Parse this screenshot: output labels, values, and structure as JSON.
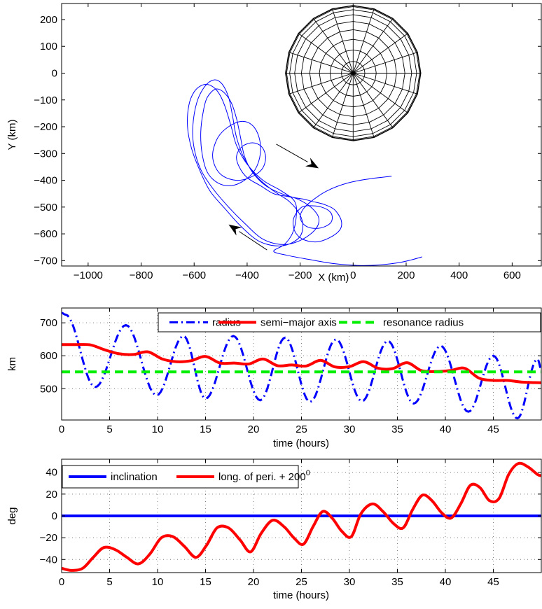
{
  "chart_data": [
    {
      "type": "line",
      "xlabel": "X (km)",
      "ylabel": "Y (km)",
      "xlim": [
        -1100,
        710
      ],
      "ylim": [
        -720,
        260
      ],
      "xticks": [
        -1000,
        -800,
        -600,
        -400,
        -200,
        0,
        200,
        400,
        600
      ],
      "yticks": [
        200,
        100,
        0,
        -100,
        -200,
        -300,
        -400,
        -500,
        -600,
        -700
      ],
      "xtick_labels": [
        "−1000",
        "−800",
        "−600",
        "−400",
        "−200",
        "0",
        "200",
        "400",
        "600"
      ],
      "ytick_labels": [
        "200",
        "100",
        "0",
        "−100",
        "−200",
        "−300",
        "−400",
        "−500",
        "−600",
        "−700"
      ],
      "grid": false,
      "body": {
        "center": [
          0,
          0
        ],
        "radius": 255
      },
      "trajectory_color": "#0000ff",
      "trajectory": [
        [
          145,
          -385
        ],
        [
          60,
          -395
        ],
        [
          -20,
          -410
        ],
        [
          -100,
          -440
        ],
        [
          -160,
          -480
        ],
        [
          -190,
          -510
        ],
        [
          -200,
          -540
        ],
        [
          -180,
          -570
        ],
        [
          -140,
          -580
        ],
        [
          -100,
          -570
        ],
        [
          -80,
          -550
        ],
        [
          -85,
          -520
        ],
        [
          -120,
          -500
        ],
        [
          -170,
          -495
        ],
        [
          -200,
          -505
        ],
        [
          -225,
          -545
        ],
        [
          -220,
          -590
        ],
        [
          -190,
          -620
        ],
        [
          -140,
          -630
        ],
        [
          -90,
          -615
        ],
        [
          -50,
          -585
        ],
        [
          -45,
          -550
        ],
        [
          -70,
          -510
        ],
        [
          -110,
          -490
        ],
        [
          -150,
          -480
        ],
        [
          -190,
          -470
        ],
        [
          -250,
          -460
        ],
        [
          -300,
          -450
        ],
        [
          -350,
          -420
        ],
        [
          -400,
          -390
        ],
        [
          -430,
          -350
        ],
        [
          -440,
          -310
        ],
        [
          -420,
          -275
        ],
        [
          -380,
          -260
        ],
        [
          -345,
          -275
        ],
        [
          -330,
          -315
        ],
        [
          -345,
          -360
        ],
        [
          -390,
          -390
        ],
        [
          -440,
          -400
        ],
        [
          -490,
          -385
        ],
        [
          -520,
          -350
        ],
        [
          -530,
          -300
        ],
        [
          -510,
          -240
        ],
        [
          -470,
          -200
        ],
        [
          -420,
          -180
        ],
        [
          -380,
          -195
        ],
        [
          -355,
          -240
        ],
        [
          -350,
          -300
        ],
        [
          -370,
          -360
        ],
        [
          -410,
          -400
        ],
        [
          -460,
          -420
        ],
        [
          -510,
          -410
        ],
        [
          -550,
          -370
        ],
        [
          -570,
          -300
        ],
        [
          -575,
          -220
        ],
        [
          -565,
          -140
        ],
        [
          -550,
          -90
        ],
        [
          -520,
          -60
        ],
        [
          -490,
          -70
        ],
        [
          -460,
          -110
        ],
        [
          -440,
          -170
        ],
        [
          -425,
          -240
        ],
        [
          -410,
          -310
        ],
        [
          -380,
          -370
        ],
        [
          -330,
          -420
        ],
        [
          -270,
          -450
        ],
        [
          -210,
          -470
        ],
        [
          -160,
          -500
        ],
        [
          -130,
          -540
        ],
        [
          -140,
          -580
        ],
        [
          -190,
          -620
        ],
        [
          -260,
          -640
        ],
        [
          -340,
          -620
        ],
        [
          -410,
          -560
        ],
        [
          -470,
          -500
        ],
        [
          -530,
          -430
        ],
        [
          -575,
          -360
        ],
        [
          -600,
          -280
        ],
        [
          -605,
          -200
        ],
        [
          -590,
          -110
        ],
        [
          -560,
          -50
        ],
        [
          -525,
          -25
        ],
        [
          -495,
          -40
        ],
        [
          -470,
          -90
        ],
        [
          -455,
          -160
        ],
        [
          -440,
          -240
        ],
        [
          -410,
          -320
        ],
        [
          -360,
          -390
        ],
        [
          -300,
          -440
        ],
        [
          -240,
          -480
        ],
        [
          -200,
          -530
        ],
        [
          -190,
          -580
        ],
        [
          -210,
          -620
        ],
        [
          -270,
          -645
        ],
        [
          -350,
          -630
        ],
        [
          -420,
          -575
        ],
        [
          -480,
          -510
        ],
        [
          -540,
          -440
        ],
        [
          -580,
          -360
        ],
        [
          -610,
          -280
        ],
        [
          -625,
          -200
        ],
        [
          -620,
          -120
        ],
        [
          -600,
          -70
        ],
        [
          -570,
          -45
        ],
        [
          -540,
          -45
        ],
        [
          -510,
          -70
        ],
        [
          -485,
          -120
        ],
        [
          -460,
          -200
        ],
        [
          -440,
          -270
        ],
        [
          -400,
          -340
        ],
        [
          -340,
          -400
        ],
        [
          -270,
          -440
        ],
        [
          -220,
          -480
        ],
        [
          -215,
          -540
        ],
        [
          -230,
          -600
        ],
        [
          -260,
          -640
        ],
        [
          -300,
          -665
        ],
        [
          -250,
          -680
        ],
        [
          -170,
          -695
        ],
        [
          -80,
          -710
        ],
        [
          20,
          -718
        ],
        [
          100,
          -716
        ],
        [
          170,
          -708
        ],
        [
          220,
          -697
        ],
        [
          260,
          -686
        ]
      ],
      "arrows": [
        {
          "from": [
            -290,
            -265
          ],
          "to": [
            -130,
            -355
          ]
        },
        {
          "from": [
            -325,
            -660
          ],
          "to": [
            -470,
            -565
          ]
        }
      ]
    },
    {
      "type": "line",
      "xlabel": "time (hours)",
      "ylabel": "km",
      "xlim": [
        0,
        50
      ],
      "ylim": [
        405,
        745
      ],
      "xticks": [
        0,
        5,
        10,
        15,
        20,
        25,
        30,
        35,
        40,
        45
      ],
      "yticks": [
        500,
        600,
        700
      ],
      "grid": true,
      "legend_position": "top",
      "series": [
        {
          "name": "radius",
          "color": "#0000ff",
          "style": "dash-dot",
          "model": "oscillation",
          "x": [
            0,
            0.4,
            3.5,
            6.7,
            9.9,
            12.7,
            15,
            17.9,
            20.7,
            23.3,
            25.9,
            28.6,
            31.3,
            34,
            36.7,
            39.5,
            42.4,
            45,
            47.5,
            49.6,
            50
          ],
          "y": [
            730,
            725,
            505,
            693,
            480,
            660,
            470,
            660,
            465,
            655,
            460,
            650,
            462,
            645,
            455,
            630,
            430,
            600,
            410,
            590,
            560
          ]
        },
        {
          "name": "semi−major axis",
          "color": "#ff0000",
          "style": "solid",
          "x": [
            0,
            1.5,
            3,
            4.5,
            6,
            7.5,
            9,
            10.5,
            12,
            13.5,
            15,
            16.5,
            18,
            19.5,
            21,
            22.5,
            24,
            25.5,
            27,
            28.5,
            30,
            31.5,
            33,
            34.5,
            36,
            37.5,
            39,
            40.5,
            42,
            43.5,
            45,
            46.5,
            48,
            50
          ],
          "y": [
            634,
            634,
            633,
            618,
            606,
            604,
            612,
            590,
            582,
            585,
            598,
            578,
            578,
            575,
            590,
            570,
            572,
            569,
            586,
            566,
            567,
            582,
            562,
            561,
            579,
            555,
            552,
            555,
            562,
            532,
            525,
            525,
            520,
            518
          ]
        },
        {
          "name": "resonance radius",
          "color": "#00ee00",
          "style": "dashed",
          "x": [
            0,
            50
          ],
          "y": [
            551,
            551
          ]
        }
      ]
    },
    {
      "type": "line",
      "xlabel": "time (hours)",
      "ylabel": "deg",
      "xlim": [
        0,
        50
      ],
      "ylim": [
        -52,
        52
      ],
      "xticks": [
        0,
        5,
        10,
        15,
        20,
        25,
        30,
        35,
        40,
        45
      ],
      "yticks": [
        40,
        20,
        0,
        -20,
        -40
      ],
      "ytick_labels": [
        "40",
        "20",
        "0",
        "−20",
        "−40"
      ],
      "grid": true,
      "legend_position": "top-left",
      "series": [
        {
          "name": "inclination",
          "color": "#0000ff",
          "style": "solid",
          "x": [
            0,
            50
          ],
          "y": [
            0,
            0
          ]
        },
        {
          "name_main": "long. of peri. + 200",
          "name_sup": "0",
          "color": "#ff0000",
          "style": "solid",
          "x": [
            0,
            1,
            2.2,
            3.3,
            4.4,
            5.6,
            6.8,
            8,
            9.2,
            10.4,
            11.6,
            12.8,
            14,
            15.1,
            16.2,
            17.4,
            18.6,
            19.7,
            20.8,
            22,
            23.2,
            24.2,
            25.2,
            26.2,
            27.2,
            28.2,
            29.2,
            30.2,
            31.2,
            32.4,
            33.5,
            34.6,
            35.6,
            36.6,
            37.6,
            38.6,
            39.6,
            40.6,
            41.6,
            42.6,
            43.6,
            44.6,
            45.6,
            46.6,
            47.6,
            48.6,
            49.6,
            50
          ],
          "y": [
            -48,
            -50,
            -48,
            -38,
            -29,
            -31,
            -38,
            -44,
            -35,
            -20,
            -19,
            -28,
            -38,
            -27,
            -11,
            -11,
            -22,
            -33,
            -16,
            -4,
            -10,
            -20,
            -26,
            -10,
            4,
            -2,
            -14,
            -19,
            2,
            11,
            4,
            -7,
            -11,
            6,
            19,
            14,
            3,
            -2,
            11,
            28,
            26,
            14,
            16,
            38,
            48,
            45,
            38,
            37
          ]
        }
      ]
    }
  ]
}
